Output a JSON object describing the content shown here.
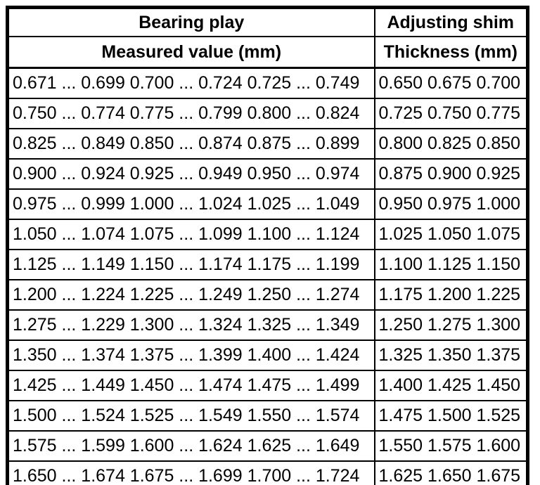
{
  "table": {
    "columns": [
      {
        "title": "Bearing play",
        "subtitle": "Measured value (mm)"
      },
      {
        "title": "Adjusting shim",
        "subtitle": "Thickness (mm)"
      }
    ],
    "rows": [
      {
        "measured": "0.671 ... 0.699 0.700 ... 0.724 0.725 ... 0.749",
        "thickness": "0.650 0.675 0.700"
      },
      {
        "measured": "0.750 ... 0.774 0.775 ... 0.799 0.800 ... 0.824",
        "thickness": "0.725 0.750 0.775"
      },
      {
        "measured": "0.825 ... 0.849 0.850 ... 0.874 0.875 ... 0.899",
        "thickness": "0.800 0.825 0.850"
      },
      {
        "measured": "0.900 ... 0.924 0.925 ... 0.949 0.950 ... 0.974",
        "thickness": "0.875 0.900 0.925"
      },
      {
        "measured": "0.975 ... 0.999 1.000 ... 1.024 1.025 ... 1.049",
        "thickness": "0.950 0.975 1.000"
      },
      {
        "measured": "1.050 ... 1.074 1.075 ... 1.099 1.100 ... 1.124",
        "thickness": "1.025 1.050 1.075"
      },
      {
        "measured": "1.125 ... 1.149 1.150 ... 1.174 1.175 ... 1.199",
        "thickness": "1.100 1.125 1.150"
      },
      {
        "measured": "1.200 ... 1.224 1.225 ... 1.249 1.250 ... 1.274",
        "thickness": "1.175 1.200 1.225"
      },
      {
        "measured": "1.275 ... 1.229 1.300 ... 1.324 1.325 ... 1.349",
        "thickness": "1.250 1.275 1.300"
      },
      {
        "measured": "1.350 ... 1.374 1.375 ... 1.399 1.400 ... 1.424",
        "thickness": "1.325 1.350 1.375"
      },
      {
        "measured": "1.425 ... 1.449 1.450 ... 1.474 1.475 ... 1.499",
        "thickness": "1.400 1.425 1.450"
      },
      {
        "measured": "1.500 ... 1.524 1.525 ... 1.549 1.550 ... 1.574",
        "thickness": "1.475 1.500 1.525"
      },
      {
        "measured": "1.575 ... 1.599 1.600 ... 1.624 1.625 ... 1.649",
        "thickness": "1.550 1.575 1.600"
      },
      {
        "measured": "1.650 ... 1.674 1.675 ... 1.699 1.700 ... 1.724",
        "thickness": "1.625 1.650 1.675"
      }
    ]
  },
  "colors": {
    "border": "#000000",
    "background": "#ffffff",
    "text": "#000000"
  }
}
